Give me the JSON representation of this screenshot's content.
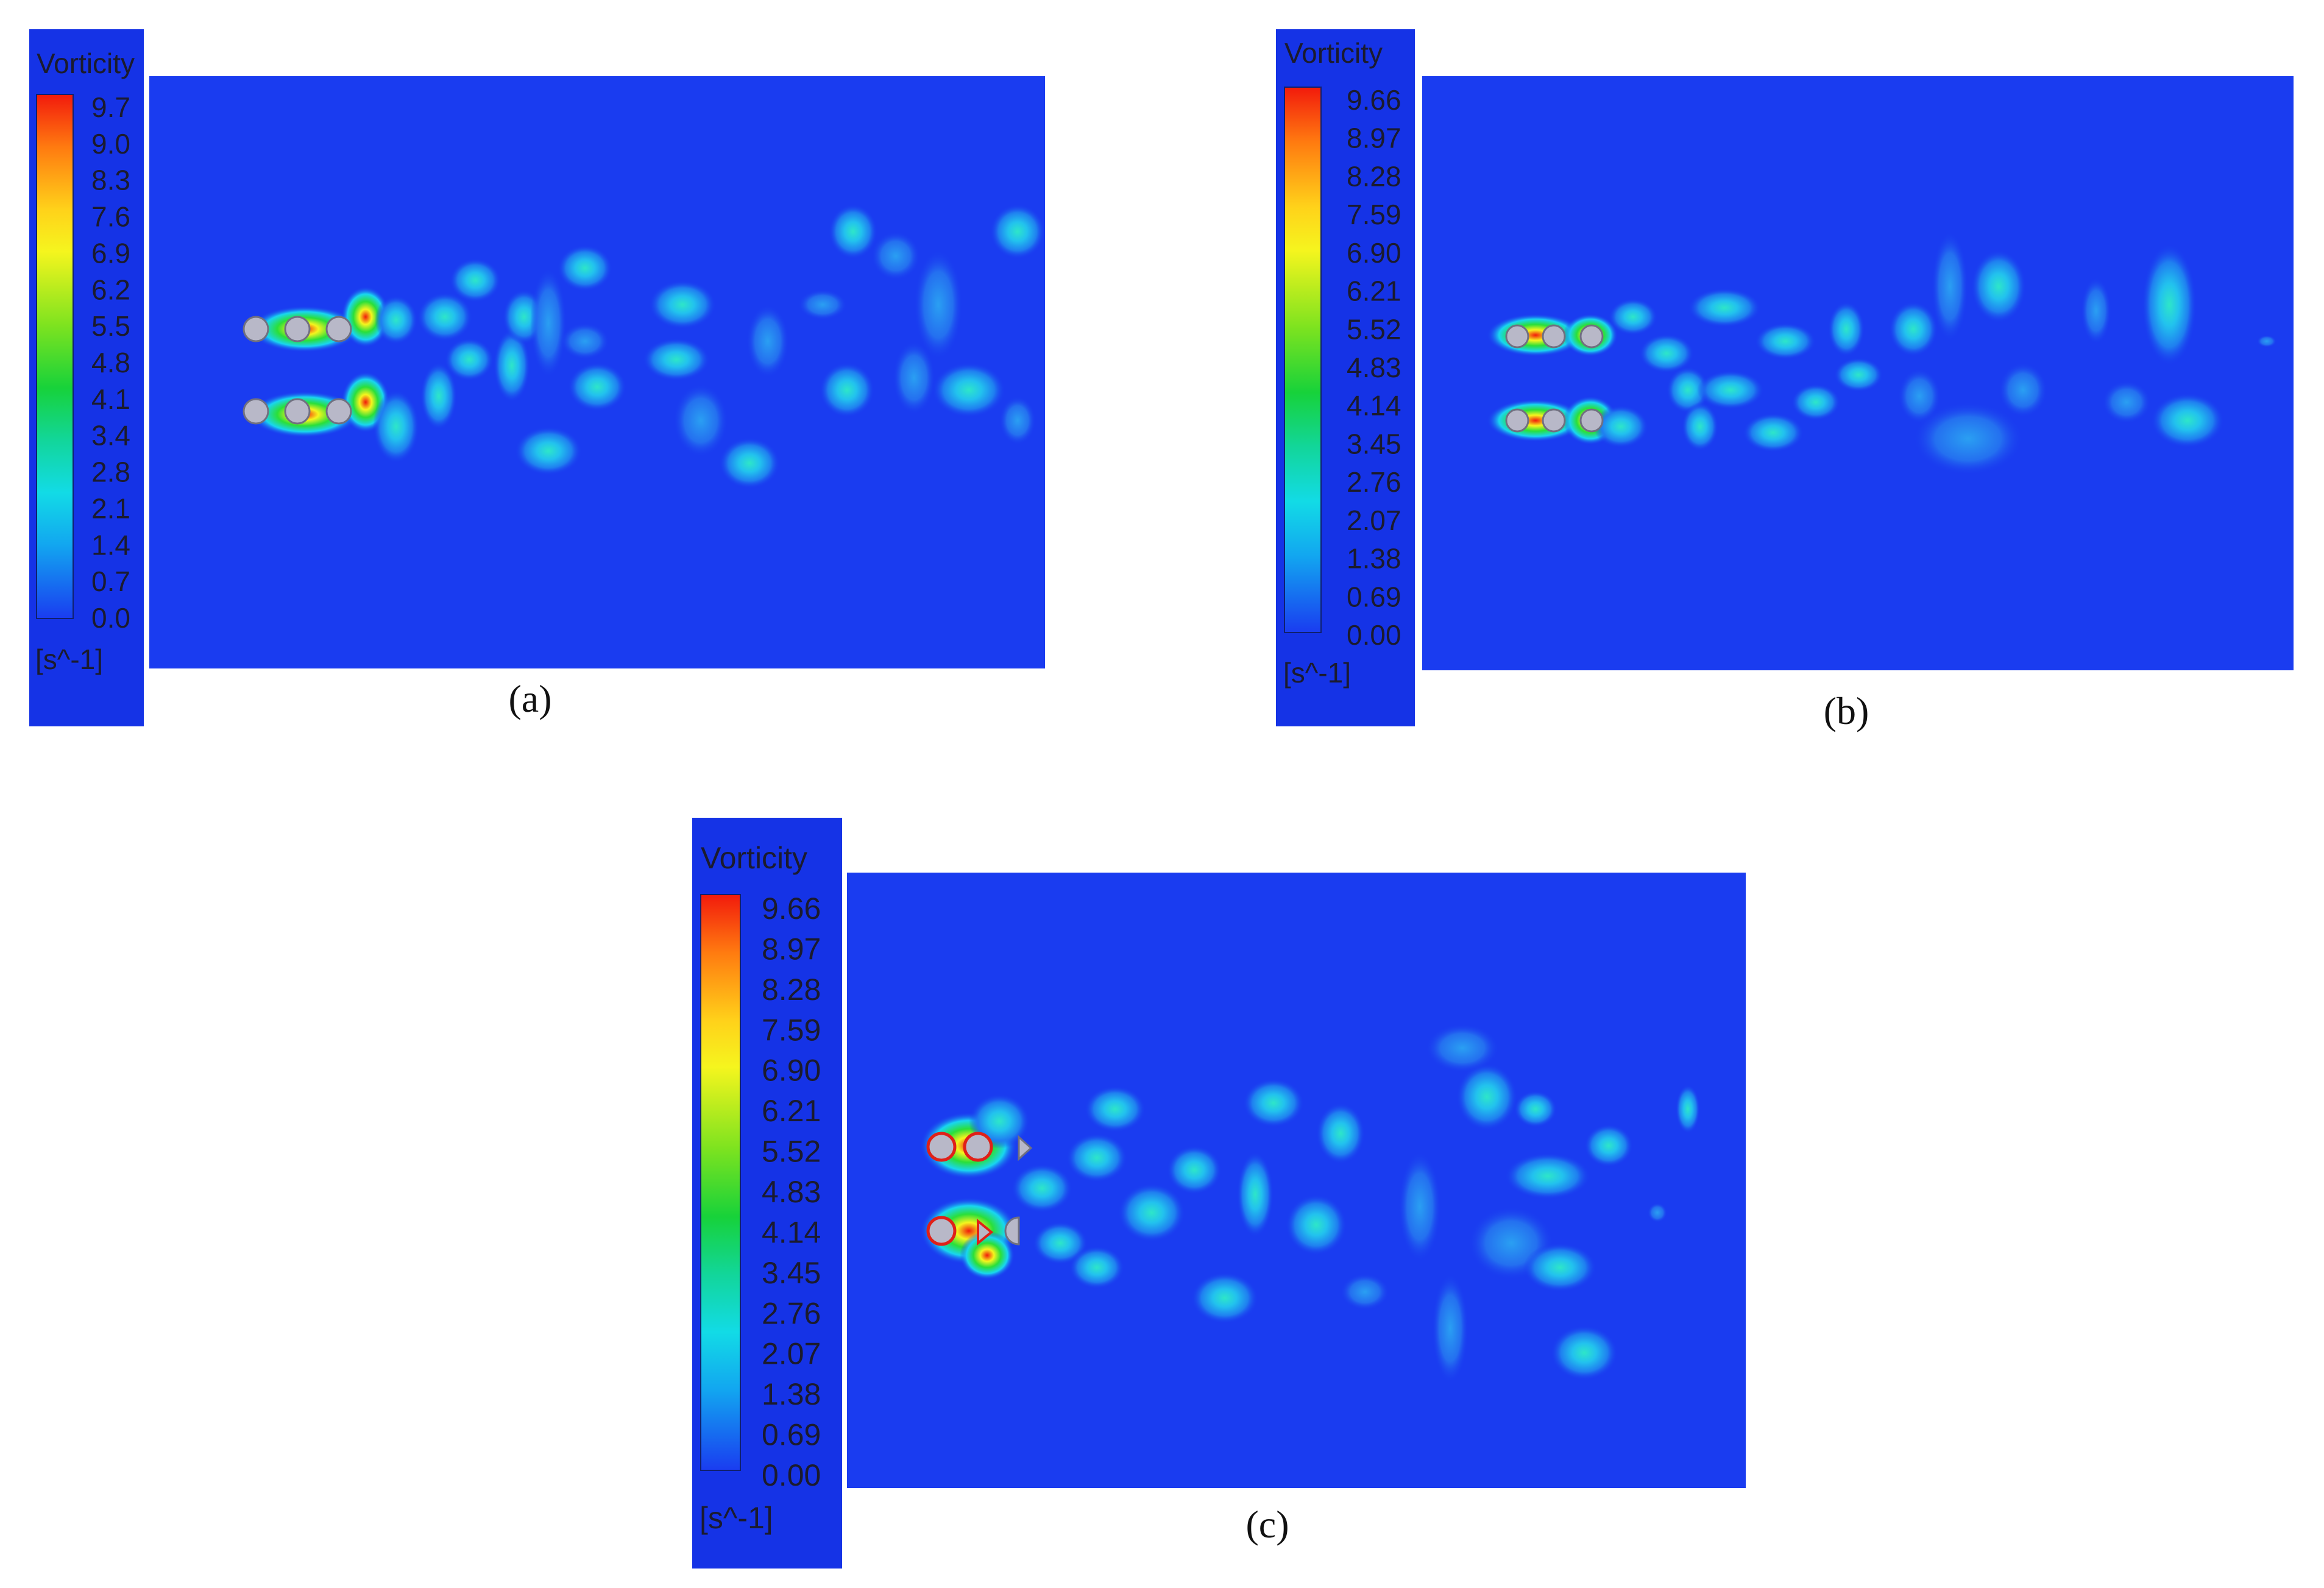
{
  "figure": {
    "panels": [
      {
        "id": "a",
        "caption": "(a)",
        "legend": {
          "title": "Vorticity",
          "unit": "[s^-1]",
          "ticks": [
            "9.7",
            "9.0",
            "8.3",
            "7.6",
            "6.9",
            "6.2",
            "5.5",
            "4.8",
            "4.1",
            "3.4",
            "2.8",
            "2.1",
            "1.4",
            "0.7",
            "0.0"
          ]
        }
      },
      {
        "id": "b",
        "caption": "(b)",
        "legend": {
          "title": "Vorticity",
          "unit": "[s^-1]",
          "ticks": [
            "9.66",
            "8.97",
            "8.28",
            "7.59",
            "6.90",
            "6.21",
            "5.52",
            "4.83",
            "4.14",
            "3.45",
            "2.76",
            "2.07",
            "1.38",
            "0.69",
            "0.00"
          ]
        }
      },
      {
        "id": "c",
        "caption": "(c)",
        "legend": {
          "title": "Vorticity",
          "unit": "[s^-1]",
          "ticks": [
            "9.66",
            "8.97",
            "8.28",
            "7.59",
            "6.90",
            "6.21",
            "5.52",
            "4.83",
            "4.14",
            "3.45",
            "2.76",
            "2.07",
            "1.38",
            "0.69",
            "0.00"
          ]
        }
      }
    ],
    "colors": {
      "background_field": "#1a3cf0",
      "legend_panel": "#1533e6",
      "low": "#1a3cf0",
      "mid_cyan": "#19d6f0",
      "mid_green": "#2adf3a",
      "high_yellow": "#f5f51e",
      "max_red": "#f0200f"
    }
  }
}
